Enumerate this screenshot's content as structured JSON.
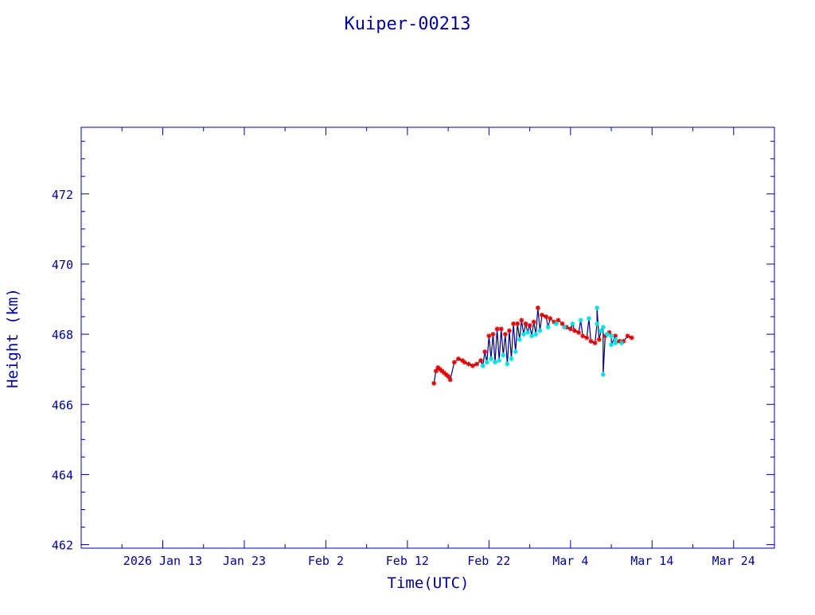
{
  "chart_data": {
    "type": "line",
    "title": "Kuiper-00213",
    "xlabel": "Time(UTC)",
    "ylabel": "Height (km)",
    "x_tick_labels": [
      "2026 Jan 13",
      "Jan 23",
      "Feb  2",
      "Feb 12",
      "Feb 22",
      "Mar  4",
      "Mar 14",
      "Mar 24"
    ],
    "x_tick_dates": [
      "2026-01-13",
      "2026-01-23",
      "2026-02-02",
      "2026-02-12",
      "2026-02-22",
      "2026-03-04",
      "2026-03-14",
      "2026-03-24"
    ],
    "xlim": [
      "2026-01-03",
      "2026-03-29"
    ],
    "ylim": [
      461.9,
      473.9
    ],
    "y_ticks": [
      462,
      464,
      466,
      468,
      470,
      472
    ],
    "y_tick_labels": [
      "462",
      "464",
      "466",
      "468",
      "470",
      "472"
    ],
    "grid": false,
    "colors": {
      "axes": "#0000a0",
      "line": "#000080",
      "series_red": "#e00000",
      "series_cyan": "#00e0e0"
    },
    "series": [
      {
        "color": "red",
        "x": [
          "2026-02-15 06:00",
          "2026-02-15 12:00",
          "2026-02-15 18:00",
          "2026-02-16 00:00",
          "2026-02-16 06:00",
          "2026-02-16 12:00",
          "2026-02-16 18:00",
          "2026-02-17 00:00",
          "2026-02-17 06:00",
          "2026-02-17 18:00",
          "2026-02-18 06:00",
          "2026-02-18 18:00",
          "2026-02-19 00:00",
          "2026-02-19 12:00",
          "2026-02-20 00:00",
          "2026-02-20 12:00",
          "2026-02-21 00:00",
          "2026-02-21 12:00",
          "2026-02-22 00:00",
          "2026-02-22 12:00",
          "2026-02-23 00:00",
          "2026-02-23 12:00",
          "2026-02-24 00:00",
          "2026-02-24 12:00",
          "2026-02-25 00:00",
          "2026-02-25 12:00",
          "2026-02-26 00:00",
          "2026-02-26 12:00",
          "2026-02-27 00:00",
          "2026-02-27 12:00",
          "2026-02-28 00:00",
          "2026-02-28 12:00",
          "2026-03-01 00:00",
          "2026-03-01 12:00",
          "2026-03-02 00:00",
          "2026-03-02 12:00",
          "2026-03-03 00:00",
          "2026-03-03 12:00",
          "2026-03-04 00:00",
          "2026-03-04 12:00",
          "2026-03-05 00:00",
          "2026-03-05 12:00",
          "2026-03-06 00:00",
          "2026-03-06 12:00",
          "2026-03-07 00:00",
          "2026-03-07 12:00",
          "2026-03-08 06:00",
          "2026-03-08 18:00",
          "2026-03-09 12:00",
          "2026-03-10 00:00",
          "2026-03-10 12:00",
          "2026-03-11 00:00",
          "2026-03-11 12:00"
        ],
        "y": [
          466.6,
          466.95,
          467.05,
          467.0,
          466.95,
          466.9,
          466.85,
          466.8,
          466.7,
          467.2,
          467.3,
          467.25,
          467.2,
          467.15,
          467.1,
          467.15,
          467.25,
          467.5,
          467.95,
          468.0,
          468.15,
          468.15,
          468.0,
          468.1,
          468.3,
          468.3,
          468.4,
          468.3,
          468.25,
          468.35,
          468.75,
          468.55,
          468.5,
          468.45,
          468.35,
          468.4,
          468.3,
          468.2,
          468.15,
          468.1,
          468.05,
          467.95,
          467.9,
          467.8,
          467.75,
          467.85,
          467.95,
          468.05,
          467.95,
          467.8,
          467.8,
          467.95,
          467.9
        ]
      },
      {
        "color": "cyan",
        "x": [
          "2026-02-21 06:00",
          "2026-02-21 18:00",
          "2026-02-22 06:00",
          "2026-02-22 18:00",
          "2026-02-23 06:00",
          "2026-02-23 18:00",
          "2026-02-24 06:00",
          "2026-02-24 18:00",
          "2026-02-25 06:00",
          "2026-02-25 18:00",
          "2026-02-26 06:00",
          "2026-02-26 18:00",
          "2026-02-27 06:00",
          "2026-02-27 18:00",
          "2026-02-28 06:00",
          "2026-03-01 06:00",
          "2026-03-02 06:00",
          "2026-03-03 06:00",
          "2026-03-04 06:00",
          "2026-03-05 06:00",
          "2026-03-06 06:00",
          "2026-03-07 06:00",
          "2026-03-08 00:00",
          "2026-03-08 12:00",
          "2026-03-09 00:00",
          "2026-03-09 12:00",
          "2026-03-10 06:00"
        ],
        "y": [
          467.1,
          467.2,
          467.3,
          467.2,
          467.25,
          467.4,
          467.15,
          467.3,
          467.5,
          467.85,
          468.0,
          468.05,
          467.95,
          468.0,
          468.1,
          468.2,
          468.3,
          468.2,
          468.3,
          468.4,
          468.45,
          468.3,
          468.2,
          468.0,
          467.95,
          467.85,
          467.75
        ]
      }
    ],
    "extra_points": [
      {
        "color": "cyan",
        "x": [
          "2026-03-07 06:00",
          "2026-03-07 18:00",
          "2026-03-08 00:00",
          "2026-03-08 12:00",
          "2026-03-09 00:00",
          "2026-03-09 12:00"
        ],
        "y": [
          468.75,
          468.1,
          466.85,
          468.0,
          467.7,
          467.75
        ]
      }
    ]
  }
}
